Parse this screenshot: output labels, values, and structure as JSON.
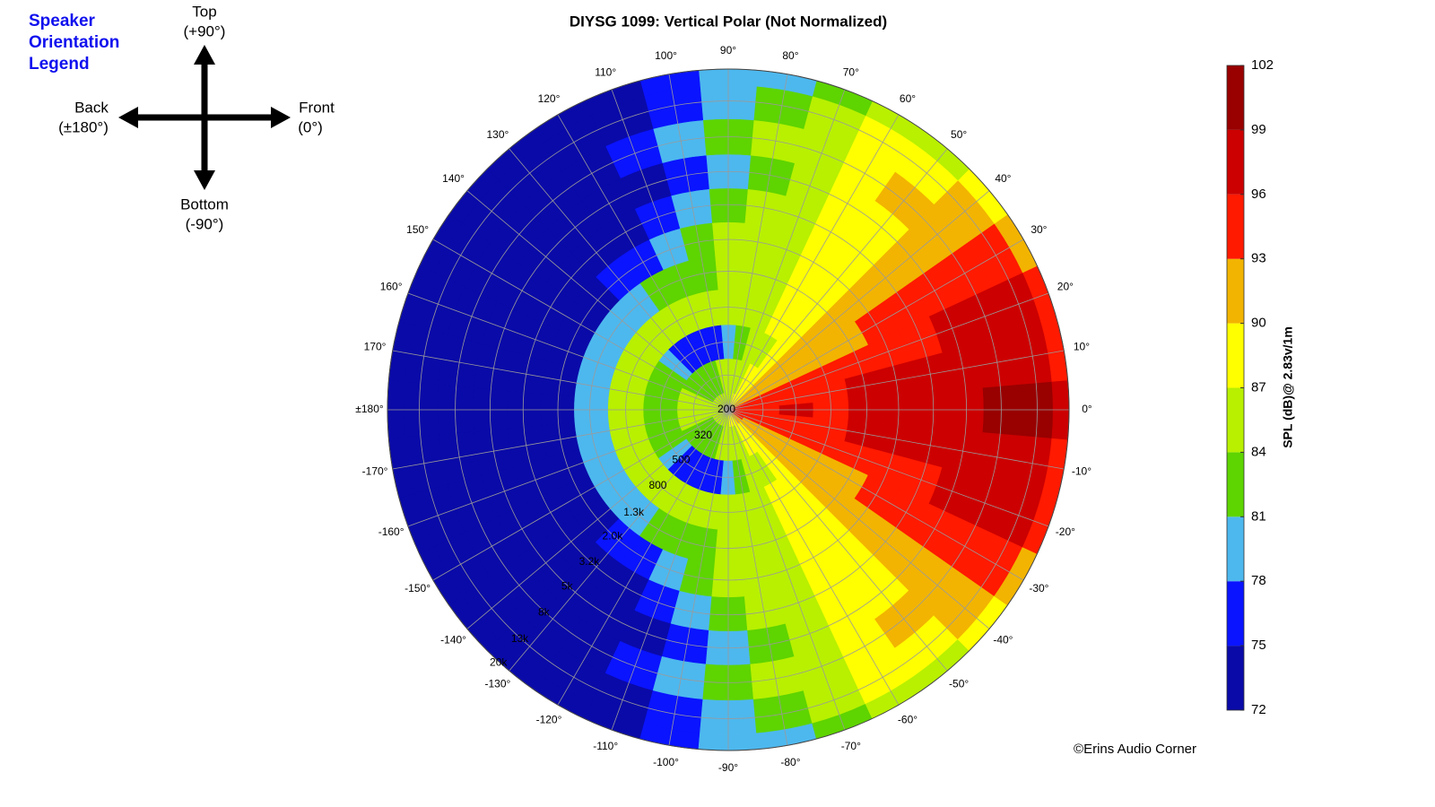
{
  "chart_data": {
    "type": "polar_contour",
    "title": "DIYSG 1099: Vertical Polar (Not Normalized)",
    "colorbar_label": "SPL (dB)@ 2.83v/1m",
    "credit": "©Erins Audio Corner",
    "orientation_legend": {
      "title": [
        "Speaker",
        "Orientation",
        "Legend"
      ],
      "top": [
        "Top",
        "(+90°)"
      ],
      "back": [
        "Back",
        "(±180°)"
      ],
      "front": [
        "Front",
        "(0°)"
      ],
      "bottom": [
        "Bottom",
        "(-90°)"
      ]
    },
    "rscale": "log",
    "rlim": [
      200,
      20000
    ],
    "rticks": [
      200,
      320,
      500,
      800,
      {
        "value": 1300,
        "label": "1.3k"
      },
      {
        "value": 2000,
        "label": "2.0k"
      },
      {
        "value": 3200,
        "label": "3.2k"
      },
      {
        "value": 5000,
        "label": "5k"
      },
      {
        "value": 8000,
        "label": "8k"
      },
      {
        "value": 13000,
        "label": "13k"
      },
      {
        "value": 20000,
        "label": "20k"
      }
    ],
    "thetaticks": [
      {
        "value": 180,
        "label": "±180°"
      },
      {
        "value": -170,
        "label": "-170°"
      },
      {
        "value": -160,
        "label": "-160°"
      },
      {
        "value": -150,
        "label": "-150°"
      },
      {
        "value": -140,
        "label": "-140°"
      },
      {
        "value": -130,
        "label": "-130°"
      },
      {
        "value": -120,
        "label": "-120°"
      },
      {
        "value": -110,
        "label": "-110°"
      },
      {
        "value": -100,
        "label": "-100°"
      },
      {
        "value": -90,
        "label": "-90°"
      },
      {
        "value": -80,
        "label": "-80°"
      },
      {
        "value": -70,
        "label": "-70°"
      },
      {
        "value": -60,
        "label": "-60°"
      },
      {
        "value": -50,
        "label": "-50°"
      },
      {
        "value": -40,
        "label": "-40°"
      },
      {
        "value": -30,
        "label": "-30°"
      },
      {
        "value": -20,
        "label": "-20°"
      },
      {
        "value": -10,
        "label": "-10°"
      },
      {
        "value": 0,
        "label": "0°"
      },
      {
        "value": 10,
        "label": "10°"
      },
      {
        "value": 20,
        "label": "20°"
      },
      {
        "value": 30,
        "label": "30°"
      },
      {
        "value": 40,
        "label": "40°"
      },
      {
        "value": 50,
        "label": "50°"
      },
      {
        "value": 60,
        "label": "60°"
      },
      {
        "value": 70,
        "label": "70°"
      },
      {
        "value": 80,
        "label": "80°"
      },
      {
        "value": 90,
        "label": "90°"
      },
      {
        "value": 100,
        "label": "100°"
      },
      {
        "value": 110,
        "label": "110°"
      },
      {
        "value": 120,
        "label": "120°"
      },
      {
        "value": 130,
        "label": "130°"
      },
      {
        "value": 140,
        "label": "140°"
      },
      {
        "value": 150,
        "label": "150°"
      },
      {
        "value": 160,
        "label": "160°"
      },
      {
        "value": 170,
        "label": "170°"
      }
    ],
    "angles": [
      -180,
      -170,
      -160,
      -150,
      -140,
      -130,
      -120,
      -110,
      -100,
      -90,
      -80,
      -70,
      -60,
      -50,
      -40,
      -30,
      -20,
      -10,
      0,
      10,
      20,
      30,
      40,
      50,
      60,
      70,
      80,
      90,
      100,
      110,
      120,
      130,
      140,
      150,
      160,
      170
    ],
    "frequencies": [
      200,
      320,
      500,
      800,
      1300,
      2000,
      3200,
      5000,
      8000,
      13000,
      20000
    ],
    "z": [
      [
        86,
        86,
        86,
        86,
        86,
        86,
        86,
        86,
        86,
        86,
        87,
        88,
        89,
        90,
        92,
        93,
        94,
        94,
        94,
        94,
        93,
        92,
        90,
        89,
        88,
        87,
        86,
        86,
        86,
        86,
        86,
        86,
        86,
        86,
        86,
        86
      ],
      [
        85,
        85,
        84,
        83,
        82,
        82,
        82,
        83,
        84,
        84,
        85,
        86,
        87,
        88,
        90,
        92,
        94,
        95,
        95,
        95,
        94,
        92,
        90,
        88,
        87,
        86,
        85,
        84,
        84,
        83,
        82,
        82,
        82,
        83,
        84,
        85
      ],
      [
        83,
        83,
        82,
        81,
        79,
        77,
        76,
        76,
        77,
        79,
        82,
        84,
        86,
        88,
        90,
        92,
        94,
        95,
        96,
        95,
        94,
        92,
        90,
        88,
        86,
        84,
        82,
        79,
        77,
        76,
        76,
        77,
        79,
        81,
        82,
        83
      ],
      [
        85,
        85,
        84,
        84,
        84,
        84,
        84,
        84,
        84,
        84,
        85,
        86,
        87,
        88,
        90,
        92,
        93,
        95,
        95,
        95,
        93,
        92,
        90,
        88,
        87,
        86,
        85,
        84,
        84,
        84,
        84,
        84,
        84,
        84,
        84,
        85
      ],
      [
        80,
        80,
        80,
        80,
        80,
        80,
        81,
        82,
        83,
        84,
        85,
        86,
        87,
        88,
        90,
        92,
        94,
        96,
        96,
        96,
        94,
        92,
        90,
        88,
        87,
        86,
        85,
        84,
        83,
        82,
        81,
        80,
        80,
        80,
        80,
        80
      ],
      [
        74,
        74,
        74,
        74,
        74,
        75,
        77,
        80,
        82,
        84,
        85,
        86,
        87,
        89,
        91,
        93,
        95,
        97,
        97,
        97,
        95,
        93,
        91,
        89,
        87,
        86,
        85,
        84,
        82,
        80,
        77,
        75,
        74,
        74,
        74,
        74
      ],
      [
        73,
        73,
        73,
        73,
        73,
        73,
        74,
        76,
        79,
        82,
        84,
        86,
        87,
        89,
        91,
        93,
        95,
        97,
        98,
        97,
        95,
        93,
        91,
        89,
        87,
        86,
        84,
        82,
        79,
        76,
        74,
        73,
        73,
        73,
        73,
        73
      ],
      [
        73,
        73,
        73,
        73,
        73,
        73,
        73,
        74,
        77,
        80,
        83,
        85,
        87,
        89,
        91,
        93,
        96,
        97,
        98,
        97,
        96,
        93,
        91,
        89,
        87,
        85,
        83,
        80,
        77,
        74,
        73,
        73,
        73,
        73,
        73,
        73
      ],
      [
        73,
        73,
        73,
        73,
        73,
        73,
        73,
        75,
        78,
        81,
        84,
        86,
        88,
        90,
        92,
        94,
        96,
        98,
        99,
        98,
        96,
        94,
        92,
        90,
        88,
        86,
        84,
        81,
        78,
        75,
        73,
        73,
        73,
        73,
        73,
        73
      ],
      [
        73,
        73,
        73,
        73,
        73,
        73,
        73,
        74,
        76,
        79,
        82,
        85,
        87,
        89,
        91,
        94,
        96,
        98,
        99,
        98,
        96,
        94,
        91,
        89,
        87,
        85,
        82,
        79,
        76,
        74,
        73,
        73,
        73,
        73,
        73,
        73
      ],
      [
        73,
        73,
        73,
        73,
        73,
        73,
        73,
        74,
        76,
        78,
        80,
        82,
        84,
        86,
        89,
        91,
        93,
        95,
        96,
        95,
        93,
        91,
        89,
        86,
        84,
        82,
        80,
        78,
        76,
        74,
        73,
        73,
        73,
        73,
        73,
        73
      ]
    ],
    "clim": [
      72,
      102
    ],
    "cticks": [
      72,
      75,
      78,
      81,
      84,
      87,
      90,
      93,
      96,
      99,
      102
    ],
    "colors": [
      "#0a0aa8",
      "#0a14ff",
      "#4db8ee",
      "#5ed400",
      "#b8f000",
      "#ffff00",
      "#f2b400",
      "#ff1a00",
      "#cc0000",
      "#990000"
    ],
    "grid": true
  }
}
